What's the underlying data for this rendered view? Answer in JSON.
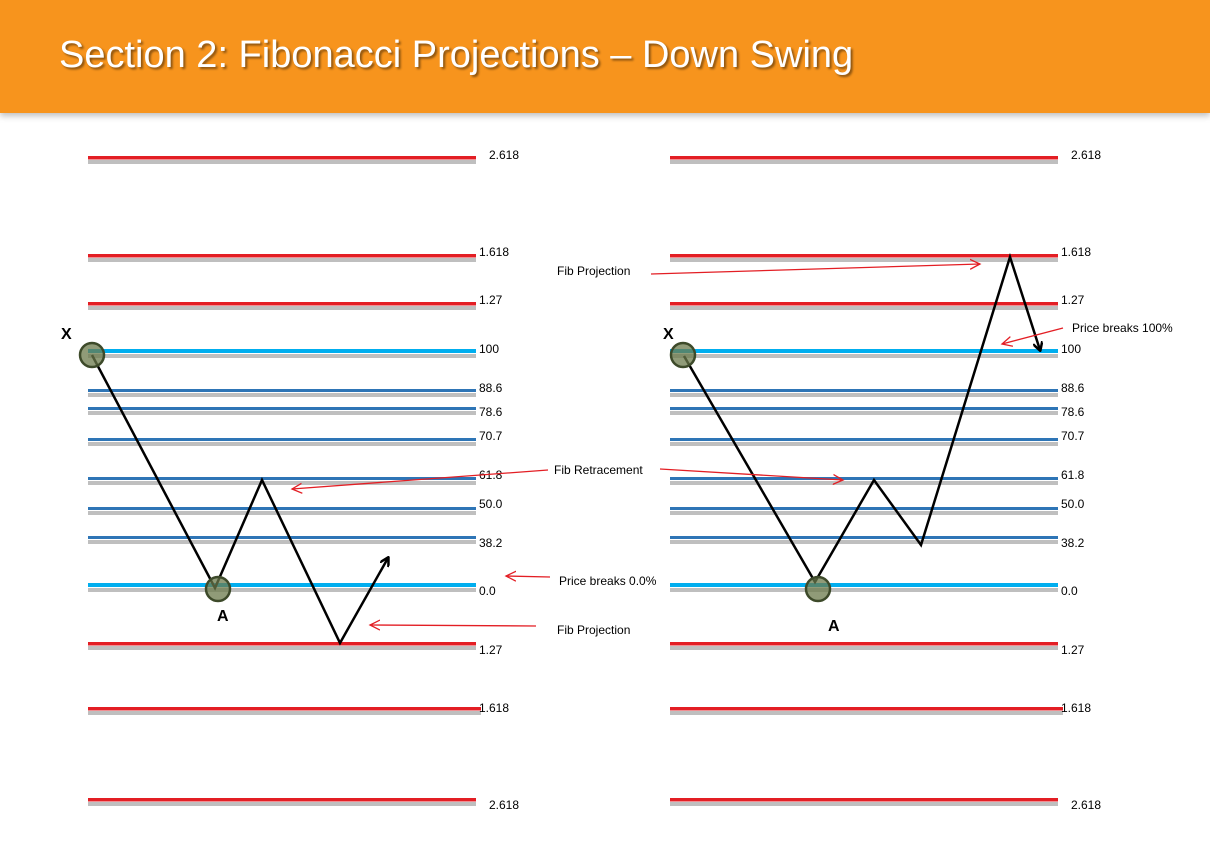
{
  "title": "Section 2: Fibonacci Projections – Down Swing",
  "colors": {
    "header": "#f7941d",
    "projection_line": "#e31e24",
    "zero_hundred_line": "#00aeef",
    "retracement_line": "#2e75b6",
    "point_marker": "#6b7a4b",
    "arrow": "#e31e24"
  },
  "levels": {
    "left": [
      "2.618",
      "1.618",
      "1.27",
      "100",
      "88.6",
      "78.6",
      "70.7",
      "61.8",
      "50.0",
      "38.2",
      "0.0",
      "1.27",
      "1.618",
      "2.618"
    ],
    "right": [
      "2.618",
      "1.618",
      "1.27",
      "100",
      "88.6",
      "78.6",
      "70.7",
      "61.8",
      "50.0",
      "38.2",
      "0.0",
      "1.27",
      "1.618",
      "2.618"
    ]
  },
  "points": {
    "left_x": "X",
    "left_a": "A",
    "right_x": "X",
    "right_a": "A"
  },
  "annotations": {
    "fib_projection_top": "Fib Projection",
    "price_breaks_100": "Price breaks 100%",
    "fib_retracement": "Fib Retracement",
    "price_breaks_0": "Price breaks 0.0%",
    "fib_projection_bottom": "Fib Projection"
  }
}
